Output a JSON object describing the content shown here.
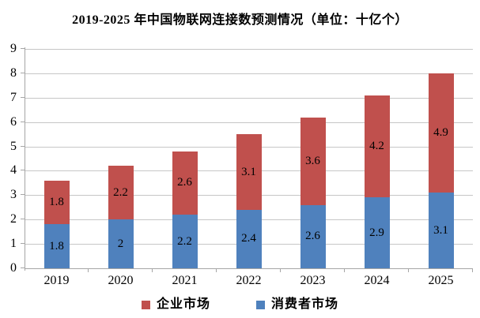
{
  "title": "2019-2025 年中国物联网连接数预测情况（单位：十亿个）",
  "chart_data": {
    "type": "bar",
    "stacked": true,
    "title": "2019-2025 年中国物联网连接数预测情况（单位：十亿个）",
    "unit": "十亿个",
    "categories": [
      "2019",
      "2020",
      "2021",
      "2022",
      "2023",
      "2024",
      "2025"
    ],
    "series": [
      {
        "key": "consumer-market",
        "name": "消费者市场",
        "color": "#4f81bd",
        "values": [
          1.8,
          2,
          2.2,
          2.4,
          2.6,
          2.9,
          3.1
        ],
        "labels": [
          "1.8",
          "2",
          "2.2",
          "2.4",
          "2.6",
          "2.9",
          "3.1"
        ]
      },
      {
        "key": "enterprise-market",
        "name": "企业市场",
        "color": "#c0504d",
        "values": [
          1.8,
          2.2,
          2.6,
          3.1,
          3.6,
          4.2,
          4.9
        ],
        "labels": [
          "1.8",
          "2.2",
          "2.6",
          "3.1",
          "3.6",
          "4.2",
          "4.9"
        ]
      }
    ],
    "totals": [
      3.6,
      4.2,
      4.8,
      5.5,
      6.2,
      7.1,
      8.0
    ],
    "legend": [
      {
        "key": "enterprise-market",
        "label": "企业市场",
        "color": "#c0504d"
      },
      {
        "key": "consumer-market",
        "label": "消费者市场",
        "color": "#4f81bd"
      }
    ],
    "ylim": [
      0,
      9
    ],
    "ytick_step": 1,
    "yticks": [
      0,
      1,
      2,
      3,
      4,
      5,
      6,
      7,
      8,
      9
    ],
    "grid": true,
    "legend_position": "bottom",
    "colors": {
      "gridline": "#c6c6c6",
      "axis": "#a6a6a6",
      "label_text": "#000000"
    }
  }
}
